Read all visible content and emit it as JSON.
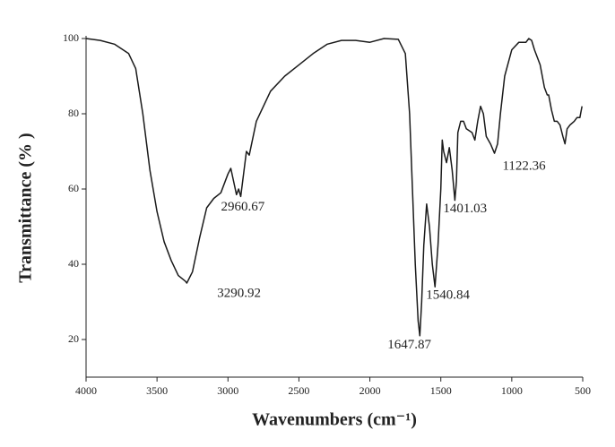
{
  "chart_data": {
    "type": "line",
    "xlabel": "Wavenumbers (cm⁻¹)",
    "ylabel": "Transmittance (% )",
    "xlim": [
      4000,
      500
    ],
    "ylim": [
      10,
      100
    ],
    "xticks": [
      4000,
      3500,
      3000,
      2500,
      2000,
      1500,
      1000,
      500
    ],
    "yticks": [
      20,
      40,
      60,
      80,
      100
    ],
    "color": "#1a1a1a",
    "x": [
      4000,
      3900,
      3800,
      3700,
      3650,
      3600,
      3550,
      3500,
      3450,
      3400,
      3350,
      3300,
      3290,
      3250,
      3200,
      3150,
      3100,
      3050,
      3000,
      2980,
      2960,
      2940,
      2925,
      2910,
      2890,
      2870,
      2850,
      2800,
      2700,
      2600,
      2500,
      2400,
      2300,
      2200,
      2100,
      2000,
      1900,
      1800,
      1750,
      1720,
      1700,
      1680,
      1660,
      1648,
      1635,
      1620,
      1600,
      1580,
      1560,
      1541,
      1520,
      1500,
      1490,
      1480,
      1460,
      1440,
      1420,
      1401,
      1390,
      1380,
      1360,
      1340,
      1320,
      1280,
      1260,
      1240,
      1220,
      1200,
      1180,
      1150,
      1122,
      1100,
      1080,
      1050,
      1000,
      950,
      900,
      880,
      860,
      840,
      800,
      770,
      750,
      740,
      720,
      700,
      680,
      660,
      640,
      625,
      610,
      590,
      560,
      540,
      520,
      505
    ],
    "values": [
      100,
      99.5,
      98.5,
      96,
      92,
      80,
      65,
      54,
      46,
      41,
      37,
      35.5,
      35,
      38,
      47,
      55,
      57.5,
      59,
      64,
      65.5,
      62,
      58.5,
      60,
      58,
      64,
      70,
      69,
      78,
      86,
      90,
      93,
      96,
      98.5,
      99.5,
      99.5,
      99,
      100,
      99.8,
      96,
      80,
      60,
      40,
      25,
      21,
      30,
      45,
      56,
      50,
      40,
      34,
      45,
      60,
      73,
      70,
      67,
      71,
      65,
      57,
      62,
      75,
      78,
      78,
      76,
      75,
      73,
      78,
      82,
      80,
      74,
      72,
      69.5,
      72,
      80,
      90,
      97,
      99,
      99,
      100,
      99.5,
      97,
      93,
      87,
      85,
      85,
      81,
      78,
      78,
      77,
      74,
      72,
      76,
      77,
      78,
      79,
      79,
      82
    ],
    "annotations": [
      {
        "text": "3290.92",
        "x": 3290.92,
        "y": 35
      },
      {
        "text": "2960.67",
        "x": 2960.67,
        "y": 62
      },
      {
        "text": "1647.87",
        "x": 1647.87,
        "y": 21
      },
      {
        "text": "1540.84",
        "x": 1540.84,
        "y": 34
      },
      {
        "text": "1401.03",
        "x": 1401.03,
        "y": 57
      },
      {
        "text": "1122.36",
        "x": 1122.36,
        "y": 69.5
      }
    ]
  }
}
